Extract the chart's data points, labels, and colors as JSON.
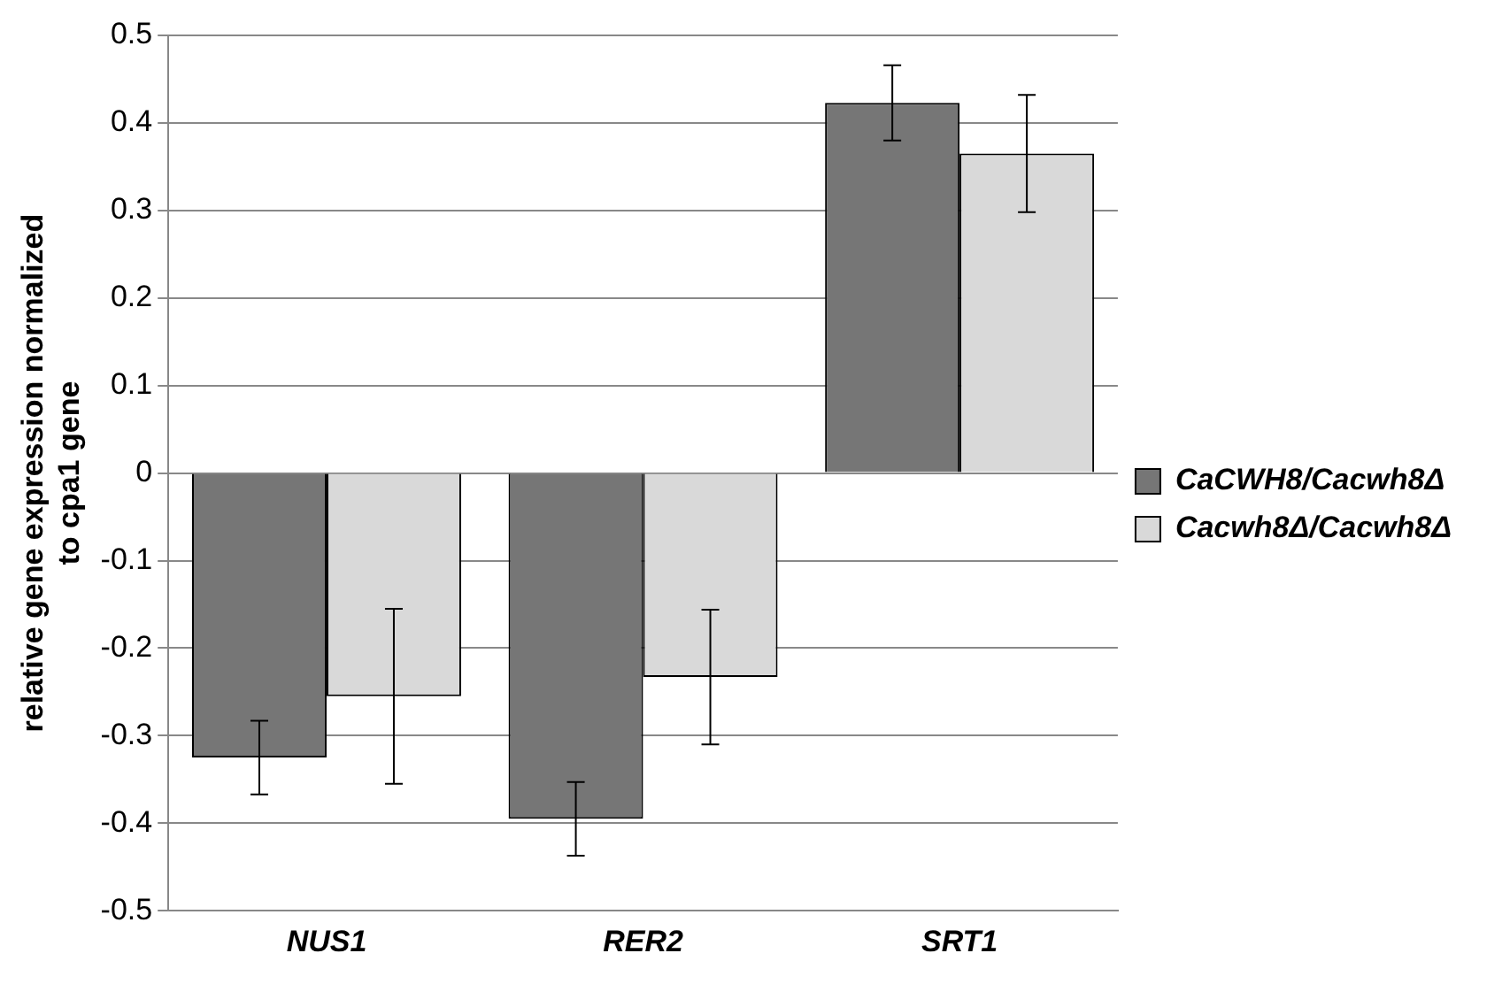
{
  "chart_data": {
    "type": "bar",
    "ylabel": "relative gene expression normalized\nto cpa1 gene",
    "categories": [
      "NUS1",
      "RER2",
      "SRT1"
    ],
    "series": [
      {
        "name": "CaCWH8/Cacwh8Δ",
        "color": "#767676",
        "values": [
          -0.325,
          -0.395,
          0.423
        ],
        "errors": [
          0.042,
          0.042,
          0.043
        ]
      },
      {
        "name": "Cacwh8Δ/Cacwh8Δ",
        "color": "#d9d9d9",
        "values": [
          -0.255,
          -0.233,
          0.365
        ],
        "errors": [
          0.1,
          0.077,
          0.067
        ]
      }
    ],
    "ylim": [
      -0.5,
      0.5
    ],
    "yticks": [
      -0.5,
      -0.4,
      -0.3,
      -0.2,
      -0.1,
      0,
      0.1,
      0.2,
      0.3,
      0.4,
      0.5
    ],
    "grid": "y",
    "legend": "right"
  }
}
